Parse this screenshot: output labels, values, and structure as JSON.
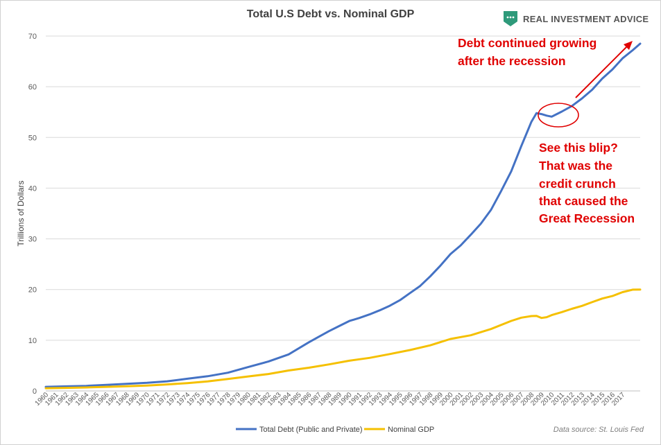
{
  "chart_data": {
    "type": "line",
    "title": "Total U.S Debt vs. Nominal GDP",
    "xlabel": "",
    "ylabel": "Trillions of Dollars",
    "ylim": [
      0,
      70
    ],
    "yticks": [
      0,
      10,
      20,
      30,
      40,
      50,
      60,
      70
    ],
    "xlim": [
      1960,
      2018.75
    ],
    "x_tick_labels": [
      "1960",
      "1961",
      "1962",
      "1963",
      "1964",
      "1965",
      "1966",
      "1967",
      "1968",
      "1969",
      "1970",
      "1971",
      "1972",
      "1973",
      "1974",
      "1975",
      "1976",
      "1977",
      "1978",
      "1979",
      "1980",
      "1981",
      "1982",
      "1983",
      "1984",
      "1985",
      "1986",
      "1987",
      "1988",
      "1989",
      "1990",
      "1991",
      "1992",
      "1993",
      "1994",
      "1995",
      "1996",
      "1997",
      "1998",
      "1999",
      "2000",
      "2001",
      "2002",
      "2003",
      "2004",
      "2005",
      "2006",
      "2007",
      "2008",
      "2009",
      "2010",
      "2011",
      "2012",
      "2013",
      "2014",
      "2015",
      "2016",
      "2017"
    ],
    "grid": true,
    "legend_position": "bottom",
    "series": [
      {
        "name": "Total Debt (Public and Private)",
        "color": "#4472c4",
        "x": [
          1960,
          1962,
          1964,
          1966,
          1968,
          1970,
          1972,
          1974,
          1976,
          1978,
          1980,
          1982,
          1984,
          1986,
          1987,
          1988,
          1989,
          1990,
          1991,
          1992,
          1993,
          1994,
          1995,
          1996,
          1997,
          1998,
          1999,
          2000,
          2001,
          2002,
          2003,
          2004,
          2005,
          2006,
          2007,
          2008,
          2008.5,
          2009,
          2009.5,
          2010,
          2010.5,
          2011,
          2012,
          2013,
          2014,
          2015,
          2016,
          2017,
          2018,
          2018.75
        ],
        "values": [
          0.8,
          0.9,
          1.0,
          1.2,
          1.4,
          1.6,
          1.9,
          2.4,
          2.9,
          3.6,
          4.7,
          5.8,
          7.2,
          9.6,
          10.7,
          11.8,
          12.8,
          13.8,
          14.4,
          15.1,
          15.9,
          16.8,
          17.9,
          19.3,
          20.7,
          22.6,
          24.7,
          27.0,
          28.7,
          30.8,
          33.0,
          35.7,
          39.4,
          43.3,
          48.3,
          53.1,
          54.8,
          54.6,
          54.3,
          54.1,
          54.6,
          55.1,
          56.2,
          57.7,
          59.4,
          61.6,
          63.4,
          65.6,
          67.2,
          68.5
        ]
      },
      {
        "name": "Nominal GDP",
        "color": "#f5c000",
        "x": [
          1960,
          1962,
          1964,
          1966,
          1968,
          1970,
          1972,
          1974,
          1976,
          1978,
          1980,
          1982,
          1984,
          1986,
          1988,
          1990,
          1992,
          1994,
          1996,
          1998,
          2000,
          2002,
          2004,
          2006,
          2007,
          2008,
          2008.5,
          2009,
          2009.5,
          2010,
          2011,
          2012,
          2013,
          2014,
          2015,
          2016,
          2017,
          2018,
          2018.75
        ],
        "values": [
          0.54,
          0.6,
          0.68,
          0.8,
          0.93,
          1.07,
          1.28,
          1.55,
          1.87,
          2.35,
          2.86,
          3.34,
          4.04,
          4.58,
          5.24,
          5.96,
          6.52,
          7.28,
          8.07,
          8.99,
          10.25,
          10.98,
          12.21,
          13.81,
          14.45,
          14.77,
          14.8,
          14.4,
          14.55,
          14.96,
          15.54,
          16.2,
          16.78,
          17.52,
          18.22,
          18.71,
          19.48,
          19.98,
          20.0
        ]
      }
    ],
    "annotations": [
      {
        "lines": [
          "Debt continued growing",
          "after the recession"
        ]
      },
      {
        "lines": [
          "See this blip?",
          "That was the",
          "credit crunch",
          "that caused the",
          "Great Recession"
        ]
      }
    ],
    "source": "Data source: St. Louis Fed"
  },
  "branding": {
    "name": "REAL INVESTMENT ADVICE",
    "logo_color": "#2e9a7a"
  }
}
